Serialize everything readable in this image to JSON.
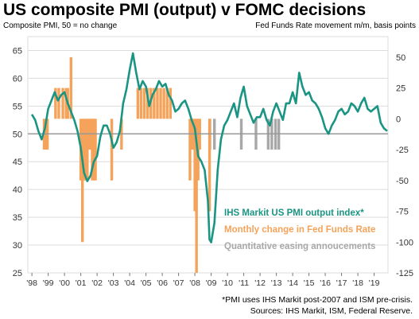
{
  "title": "US composite PMI (output) v FOMC decisions",
  "left_axis_label": "Composite PMI, 50 = no change",
  "right_axis_label": "Fed Funds Rate movement m/m, basis points",
  "footnote_1": "*PMI uses IHS Markit post-2007 and ISM pre-crisis.",
  "footnote_2": "Sources: IHS Markit, ISM, Federal Reserve.",
  "colors": {
    "pmi": "#1a9583",
    "fed": "#f5a35a",
    "qe": "#a8a8a8",
    "grid": "#dcdcdc",
    "axis": "#999999"
  },
  "chart_data": {
    "type": "bar+line",
    "x_range": [
      1997.75,
      2019.85
    ],
    "x_tick_labels": [
      "'98",
      "'99",
      "'00",
      "'01",
      "'02",
      "'03",
      "'04",
      "'05",
      "'06",
      "'07",
      "'08",
      "'09",
      "'10",
      "'11",
      "'12",
      "'13",
      "'14",
      "'15",
      "'16",
      "'17",
      "'18",
      "'19"
    ],
    "x_tick_years": [
      1998,
      1999,
      2000,
      2001,
      2002,
      2003,
      2004,
      2005,
      2006,
      2007,
      2008,
      2009,
      2010,
      2011,
      2012,
      2013,
      2014,
      2015,
      2016,
      2017,
      2018,
      2019
    ],
    "left_axis": {
      "label": "Composite PMI, 50 = no change",
      "range": [
        25,
        67.5
      ],
      "ticks": [
        25,
        30,
        35,
        40,
        45,
        50,
        55,
        60,
        65
      ]
    },
    "right_axis": {
      "label": "Fed Funds Rate movement m/m, basis points",
      "range": [
        -125,
        66.7
      ],
      "ticks": [
        -125,
        -100,
        -75,
        -50,
        -25,
        0,
        25,
        50
      ]
    },
    "legend": {
      "placement": "lower-right",
      "items": [
        {
          "label": "IHS Markit US PMI  output  index*",
          "color": "#1a9583"
        },
        {
          "label": "Monthly change in Fed Funds Rate",
          "color": "#f5a35a"
        },
        {
          "label": "Quantitative easing annoucements",
          "color": "#a8a8a8"
        }
      ]
    },
    "series": [
      {
        "name": "IHS Markit US PMI  output  index*",
        "axis": "left",
        "kind": "line",
        "x": [
          1998.0,
          1998.2,
          1998.4,
          1998.6,
          1998.8,
          1999.0,
          1999.2,
          1999.4,
          1999.6,
          1999.8,
          2000.0,
          2000.2,
          2000.4,
          2000.6,
          2000.8,
          2001.0,
          2001.2,
          2001.4,
          2001.6,
          2001.8,
          2002.0,
          2002.2,
          2002.4,
          2002.6,
          2002.8,
          2003.0,
          2003.2,
          2003.4,
          2003.6,
          2003.8,
          2004.0,
          2004.2,
          2004.4,
          2004.6,
          2004.8,
          2005.0,
          2005.2,
          2005.4,
          2005.6,
          2005.8,
          2006.0,
          2006.2,
          2006.4,
          2006.6,
          2006.8,
          2007.0,
          2007.2,
          2007.4,
          2007.6,
          2007.8,
          2008.0,
          2008.2,
          2008.4,
          2008.6,
          2008.8,
          2008.9,
          2009.0,
          2009.2,
          2009.4,
          2009.6,
          2009.8,
          2010.0,
          2010.2,
          2010.4,
          2010.6,
          2010.8,
          2011.0,
          2011.2,
          2011.4,
          2011.6,
          2011.8,
          2012.0,
          2012.2,
          2012.4,
          2012.6,
          2012.8,
          2013.0,
          2013.2,
          2013.4,
          2013.6,
          2013.8,
          2014.0,
          2014.2,
          2014.4,
          2014.6,
          2014.8,
          2015.0,
          2015.2,
          2015.4,
          2015.6,
          2015.8,
          2016.0,
          2016.2,
          2016.4,
          2016.6,
          2016.8,
          2017.0,
          2017.2,
          2017.4,
          2017.6,
          2017.8,
          2018.0,
          2018.2,
          2018.4,
          2018.6,
          2018.8,
          2019.0,
          2019.2,
          2019.4,
          2019.6,
          2019.8
        ],
        "values": [
          53.5,
          52.5,
          50.5,
          49.0,
          51.0,
          54.5,
          56.0,
          57.5,
          56.0,
          57.0,
          57.5,
          55.5,
          54.0,
          52.5,
          50.5,
          47.5,
          43.0,
          41.5,
          42.5,
          45.0,
          46.0,
          49.5,
          51.5,
          51.5,
          50.0,
          47.5,
          48.5,
          50.5,
          55.5,
          58.0,
          61.5,
          64.5,
          61.0,
          58.0,
          59.5,
          58.5,
          55.0,
          57.0,
          58.0,
          59.5,
          58.5,
          59.0,
          57.0,
          56.0,
          54.0,
          54.5,
          55.5,
          56.0,
          54.5,
          52.5,
          51.0,
          46.0,
          45.0,
          43.5,
          38.0,
          31.0,
          30.5,
          34.0,
          43.5,
          49.0,
          51.5,
          52.5,
          54.0,
          55.5,
          53.0,
          56.5,
          58.5,
          55.0,
          53.5,
          52.0,
          53.0,
          53.0,
          54.5,
          52.5,
          51.5,
          54.0,
          55.5,
          54.0,
          52.5,
          55.5,
          55.5,
          57.5,
          55.5,
          61.0,
          58.5,
          57.0,
          57.5,
          56.0,
          55.5,
          54.5,
          53.0,
          51.0,
          50.0,
          51.5,
          52.5,
          54.0,
          54.5,
          53.5,
          54.0,
          55.5,
          55.0,
          54.0,
          55.5,
          56.5,
          54.5,
          54.0,
          54.5,
          55.0,
          52.0,
          51.0,
          50.5
        ]
      },
      {
        "name": "Monthly change in Fed Funds Rate",
        "axis": "right",
        "kind": "bar",
        "x": [
          1998.75,
          1998.85,
          1998.95,
          1999.45,
          1999.65,
          1999.9,
          2000.1,
          2000.2,
          2000.4,
          2001.0,
          2001.1,
          2001.2,
          2001.3,
          2001.4,
          2001.5,
          2001.6,
          2001.7,
          2001.8,
          2001.9,
          2002.9,
          2003.5,
          2004.5,
          2004.7,
          2004.9,
          2005.1,
          2005.3,
          2005.5,
          2005.7,
          2005.9,
          2006.1,
          2006.3,
          2006.5,
          2007.7,
          2007.8,
          2007.9,
          2008.0,
          2008.1,
          2008.2,
          2008.3,
          2008.9
        ],
        "values": [
          -25,
          -25,
          -25,
          25,
          25,
          25,
          25,
          25,
          50,
          -50,
          -100,
          -50,
          -50,
          -50,
          -25,
          -25,
          -50,
          -50,
          -50,
          -50,
          -25,
          25,
          25,
          25,
          25,
          25,
          25,
          25,
          25,
          25,
          25,
          25,
          -50,
          -25,
          -25,
          -75,
          -125,
          -50,
          -25,
          -75
        ]
      },
      {
        "name": "Quantitative easing annoucements",
        "axis": "right",
        "kind": "bar",
        "x": [
          2008.92,
          2009.2,
          2010.85,
          2011.75,
          2012.5,
          2012.72,
          2012.95,
          2013.15
        ],
        "values": [
          -25,
          -25,
          -25,
          -25,
          -25,
          -25,
          -25,
          -25
        ]
      }
    ]
  }
}
